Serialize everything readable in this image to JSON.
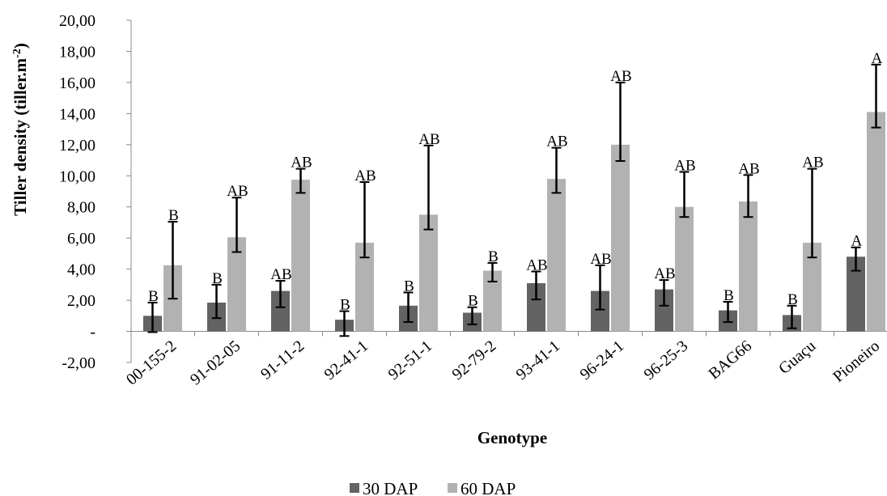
{
  "chart_data": {
    "type": "bar",
    "xlabel": "Genotype",
    "ylabel": "Tiller density (tiller.m",
    "ylabel_sup": "-2",
    "ylabel_end": ")",
    "ylim": [
      -2,
      20
    ],
    "ytick_labels": [
      "-2,00",
      "-",
      "2,00",
      "4,00",
      "6,00",
      "8,00",
      "10,00",
      "12,00",
      "14,00",
      "16,00",
      "18,00",
      "20,00"
    ],
    "ytick_values": [
      -2,
      0,
      2,
      4,
      6,
      8,
      10,
      12,
      14,
      16,
      18,
      20
    ],
    "categories": [
      "00-155-2",
      "91-02-05",
      "91-11-2",
      "92-41-1",
      "92-51-1",
      "92-79-2",
      "93-41-1",
      "96-24-1",
      "96-25-3",
      "BAG66",
      "Guaçu",
      "Pioneiro"
    ],
    "series": [
      {
        "name": "30 DAP",
        "color": "#636363",
        "values": [
          1.0,
          1.85,
          2.6,
          0.75,
          1.65,
          1.2,
          3.1,
          2.6,
          2.7,
          1.35,
          1.05,
          4.8
        ],
        "err_low": [
          -0.05,
          0.85,
          1.55,
          -0.3,
          0.6,
          0.45,
          2.05,
          1.4,
          1.65,
          0.6,
          0.2,
          3.9
        ],
        "err_high": [
          1.85,
          3.0,
          3.25,
          1.3,
          2.5,
          1.55,
          3.85,
          4.25,
          3.3,
          1.9,
          1.65,
          5.4
        ],
        "labels": [
          "B",
          "B",
          "AB",
          "B",
          "B",
          "B",
          "AB",
          "AB",
          "AB",
          "B",
          "B",
          "A"
        ]
      },
      {
        "name": "60 DAP",
        "color": "#b2b2b2",
        "values": [
          4.25,
          6.05,
          9.75,
          5.7,
          7.5,
          3.9,
          9.8,
          12.0,
          8.0,
          8.35,
          5.7,
          14.1
        ],
        "err_low": [
          2.1,
          5.1,
          8.9,
          4.75,
          6.55,
          3.2,
          8.9,
          10.95,
          7.35,
          7.35,
          4.75,
          13.1
        ],
        "err_high": [
          7.05,
          8.6,
          10.45,
          9.6,
          11.95,
          4.4,
          11.8,
          16.0,
          10.25,
          10.05,
          10.45,
          17.15
        ],
        "labels": [
          "B",
          "AB",
          "AB",
          "AB",
          "AB",
          "B",
          "AB",
          "AB",
          "AB",
          "AB",
          "AB",
          "A"
        ]
      }
    ],
    "legend_position": "bottom-center",
    "grid": false
  }
}
